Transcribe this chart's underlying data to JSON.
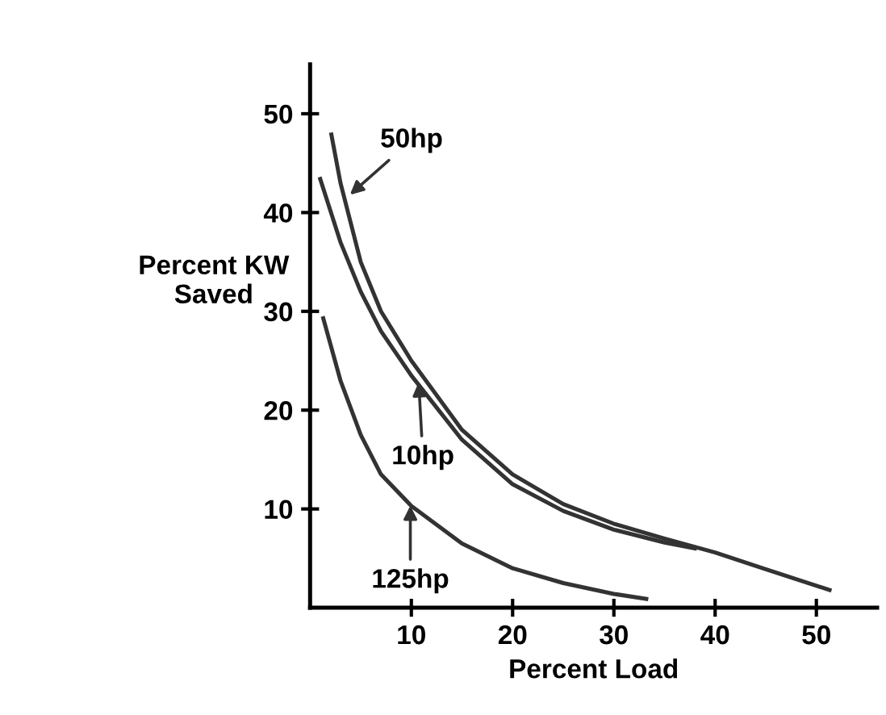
{
  "chart_data": {
    "type": "line",
    "xlabel": "Percent Load",
    "ylabel": "Percent KW\nSaved",
    "xlim": [
      0,
      56
    ],
    "ylim": [
      0,
      55
    ],
    "xticks": [
      10,
      20,
      30,
      40,
      50
    ],
    "yticks": [
      10,
      20,
      30,
      40,
      50
    ],
    "marker": "none",
    "line_style": "solid",
    "series": [
      {
        "color": "#333333",
        "x": [
          2.1,
          3,
          5,
          7,
          10,
          15,
          20,
          25,
          30,
          35,
          40,
          45,
          51.3
        ],
        "values": [
          47.9,
          43,
          35,
          30,
          25,
          18,
          13.5,
          10.5,
          8.5,
          7.0,
          5.6,
          3.9,
          1.8
        ]
      },
      {
        "color": "#333333",
        "x": [
          1,
          3,
          5,
          7,
          10,
          15,
          20,
          25,
          30,
          35,
          38
        ],
        "values": [
          43.4,
          37,
          32,
          28,
          23.5,
          17,
          12.5,
          9.8,
          7.9,
          6.6,
          6.0
        ]
      },
      {
        "color": "#333333",
        "x": [
          1.3,
          3,
          5,
          7,
          10,
          15,
          20,
          25,
          30,
          33.2
        ],
        "values": [
          29.3,
          23,
          17.5,
          13.5,
          10.3,
          6.5,
          4.0,
          2.5,
          1.4,
          0.9
        ]
      }
    ],
    "annotations": [
      {
        "text": "50hp",
        "x": 3.6,
        "y": 41.5
      },
      {
        "text": "10hp",
        "x": 10.7,
        "y": 23.3
      },
      {
        "text": "125hp",
        "x": 9.9,
        "y": 10.8
      }
    ]
  }
}
